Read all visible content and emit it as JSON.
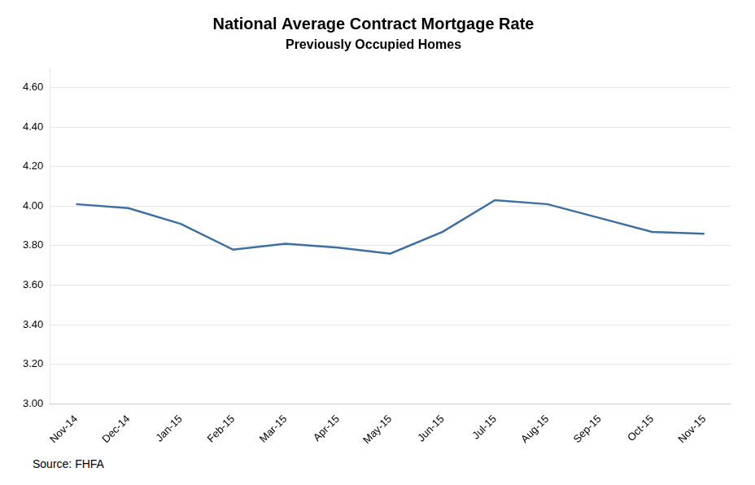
{
  "chart_data": {
    "type": "line",
    "title": "National Average Contract Mortgage Rate",
    "subtitle": "Previously Occupied Homes",
    "source": "Source:  FHFA",
    "categories": [
      "Nov-14",
      "Dec-14",
      "Jan-15",
      "Feb-15",
      "Mar-15",
      "Apr-15",
      "May-15",
      "Jun-15",
      "Jul-15",
      "Aug-15",
      "Sep-15",
      "Oct-15",
      "Nov-15"
    ],
    "values": [
      4.01,
      3.99,
      3.91,
      3.78,
      3.81,
      3.79,
      3.76,
      3.87,
      4.03,
      4.01,
      3.94,
      3.87,
      3.86
    ],
    "color": "#3D6FA3",
    "ylim": [
      3.0,
      4.7
    ],
    "yticks": [
      {
        "value": 3.0,
        "label": "3.00"
      },
      {
        "value": 3.2,
        "label": "3.20"
      },
      {
        "value": 3.4,
        "label": "3.40"
      },
      {
        "value": 3.6,
        "label": "3.60"
      },
      {
        "value": 3.8,
        "label": "3.80"
      },
      {
        "value": 4.0,
        "label": "4.00"
      },
      {
        "value": 4.2,
        "label": "4.20"
      },
      {
        "value": 4.4,
        "label": "4.40"
      },
      {
        "value": 4.6,
        "label": "4.60"
      }
    ],
    "grid": true
  }
}
